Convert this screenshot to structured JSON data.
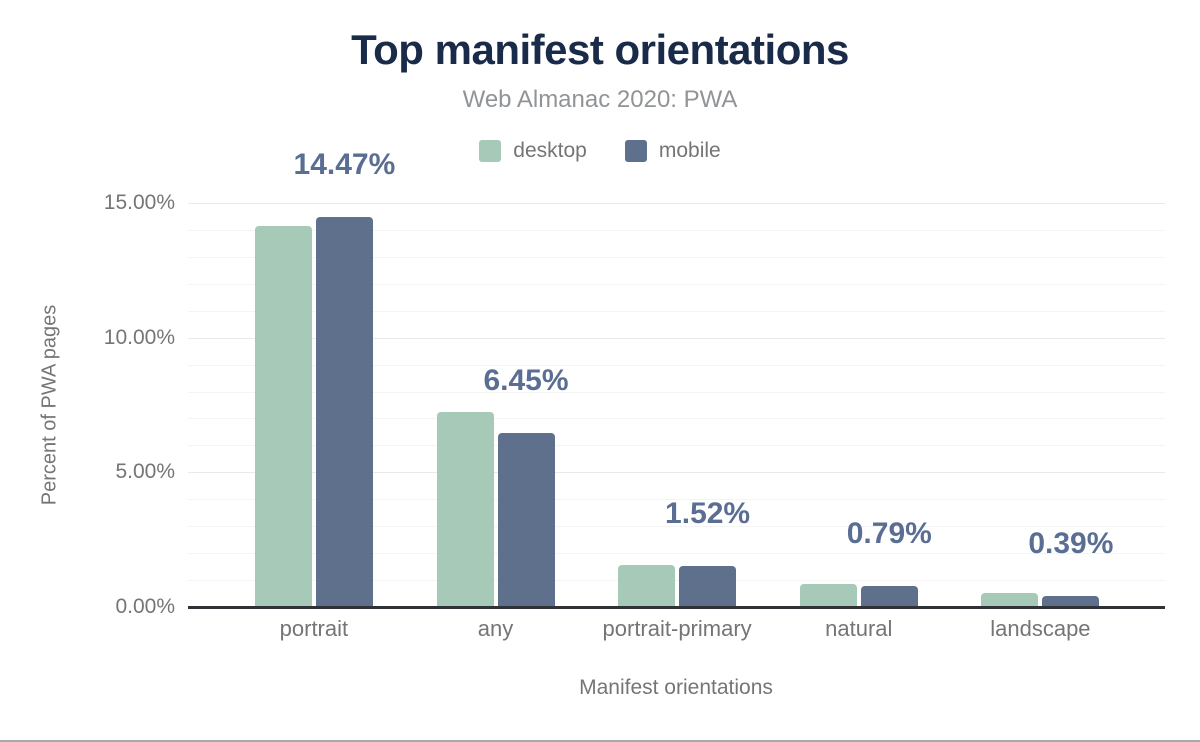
{
  "figure": {
    "title": "Top manifest orientations",
    "subtitle": "Web Almanac 2020: PWA"
  },
  "colors": {
    "title": "#1a2b4a",
    "subtitle": "#919497",
    "axis_text": "#757575",
    "value_label": "#5a6d93",
    "grid_minor": "#f4f4f4",
    "grid_major": "#e9e9e9",
    "axis_line": "#2f3337"
  },
  "chart_data": {
    "type": "bar",
    "title": "Top manifest orientations",
    "subtitle": "Web Almanac 2020: PWA",
    "categories": [
      "portrait",
      "any",
      "portrait-primary",
      "natural",
      "landscape"
    ],
    "series": [
      {
        "name": "desktop",
        "color": "#a7c9b7",
        "values": [
          14.15,
          7.25,
          1.57,
          0.87,
          0.51
        ]
      },
      {
        "name": "mobile",
        "color": "#5e708c",
        "values": [
          14.47,
          6.45,
          1.52,
          0.79,
          0.39
        ]
      }
    ],
    "value_labels": [
      "14.47%",
      "6.45%",
      "1.52%",
      "0.79%",
      "0.39%"
    ],
    "value_labels_series": "mobile",
    "xlabel": "Manifest orientations",
    "ylabel": "Percent of PWA pages",
    "yticks": [
      {
        "value": 0,
        "label": "0.00%"
      },
      {
        "value": 5,
        "label": "5.00%"
      },
      {
        "value": 10,
        "label": "10.00%"
      },
      {
        "value": 15,
        "label": "15.00%"
      }
    ],
    "ylim": [
      0,
      15
    ],
    "grid": "horizontal minor gridlines every 1%, major every 5%",
    "legend_position": "top-center"
  }
}
